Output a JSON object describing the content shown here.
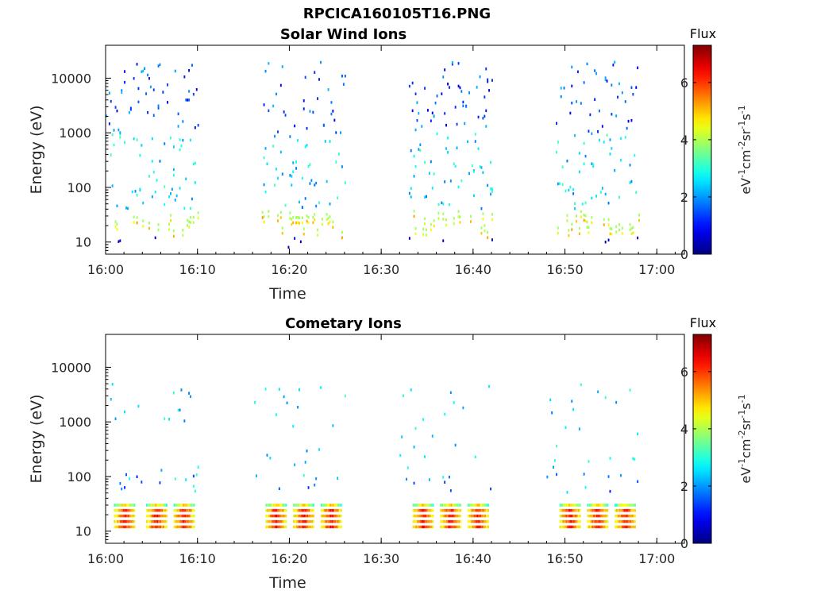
{
  "figure": {
    "title": "RPCICA160105T16.PNG"
  },
  "chart_data": [
    {
      "type": "heatmap",
      "title": "Solar Wind Ions",
      "xlabel": "Time",
      "ylabel": "Energy (eV)",
      "x_ticks": [
        "16:00",
        "16:10",
        "16:20",
        "16:30",
        "16:40",
        "16:50",
        "17:00"
      ],
      "x_range": [
        "16:00",
        "17:03"
      ],
      "y_scale": "log",
      "y_ticks": [
        10,
        100,
        1000,
        10000
      ],
      "y_range": [
        6,
        40000
      ],
      "colorbar": {
        "title": "Flux",
        "unit_label": "eV-1cm-2sr-1s-1",
        "ticks": [
          0,
          2,
          4,
          6
        ],
        "range": [
          0,
          7.3
        ],
        "colormap": "jet"
      },
      "bursts": [
        {
          "start": "16:00",
          "end": "16:10"
        },
        {
          "start": "16:17",
          "end": "16:26"
        },
        {
          "start": "16:33",
          "end": "16:42"
        },
        {
          "start": "16:49",
          "end": "16:58"
        }
      ],
      "typical_flux": {
        "high_energy_1000_to_20000eV": 1.5,
        "mid_energy_100_to_1000eV": 2.5,
        "low_energy_10_to_40eV": 4.3
      }
    },
    {
      "type": "heatmap",
      "title": "Cometary Ions",
      "xlabel": "Time",
      "ylabel": "Energy (eV)",
      "x_ticks": [
        "16:00",
        "16:10",
        "16:20",
        "16:30",
        "16:40",
        "16:50",
        "17:00"
      ],
      "x_range": [
        "16:00",
        "17:03"
      ],
      "y_scale": "log",
      "y_ticks": [
        10,
        100,
        1000,
        10000
      ],
      "y_range": [
        6,
        40000
      ],
      "colorbar": {
        "title": "Flux",
        "unit_label": "eV-1cm-2sr-1s-1",
        "ticks": [
          0,
          2,
          4,
          6
        ],
        "range": [
          0,
          7.3
        ],
        "colormap": "jet"
      },
      "bursts": [
        {
          "start": "16:00",
          "end": "16:10"
        },
        {
          "start": "16:16",
          "end": "16:26"
        },
        {
          "start": "16:32",
          "end": "16:42"
        },
        {
          "start": "16:48",
          "end": "16:58"
        }
      ],
      "band_centers": [
        "16:02",
        "16:05.5",
        "16:08.5",
        "16:18.5",
        "16:21.5",
        "16:24.5",
        "16:34.5",
        "16:37.5",
        "16:40.5",
        "16:50.5",
        "16:53.5",
        "16:56.5"
      ],
      "typical_flux": {
        "band_10_to_35eV_peak": 6.3,
        "band_edges": 4.5,
        "sparse_100_to_5000eV": 2.5
      }
    }
  ]
}
